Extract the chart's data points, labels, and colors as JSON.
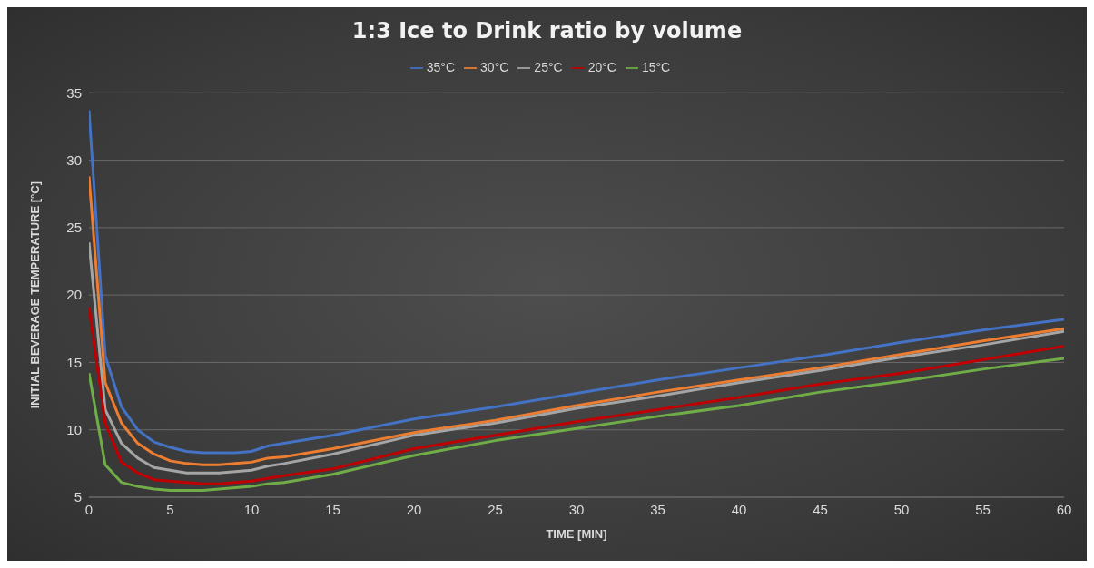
{
  "chart_data": {
    "type": "line",
    "title": "1:3 Ice to Drink ratio by volume",
    "xlabel": "TIME [MIN]",
    "ylabel": "INITIAL BEVERAGE TEMPERATURE [°C]",
    "x": [
      0,
      1,
      2,
      3,
      4,
      5,
      6,
      7,
      8,
      9,
      10,
      11,
      12,
      15,
      20,
      25,
      30,
      35,
      40,
      45,
      50,
      55,
      60
    ],
    "series": [
      {
        "name": "35°C",
        "color": "#4472c4",
        "values": [
          33.7,
          15.5,
          11.7,
          10,
          9.1,
          8.7,
          8.4,
          8.3,
          8.3,
          8.3,
          8.4,
          8.8,
          9.0,
          9.6,
          10.8,
          11.7,
          12.7,
          13.7,
          14.6,
          15.5,
          16.5,
          17.4,
          18.2
        ]
      },
      {
        "name": "30°C",
        "color": "#ed7d31",
        "values": [
          28.8,
          13.5,
          10.5,
          9,
          8.2,
          7.7,
          7.5,
          7.4,
          7.4,
          7.5,
          7.6,
          7.9,
          8.0,
          8.6,
          9.8,
          10.7,
          11.8,
          12.8,
          13.7,
          14.6,
          15.6,
          16.6,
          17.5
        ]
      },
      {
        "name": "25°C",
        "color": "#a5a5a5",
        "values": [
          23.9,
          11.5,
          9,
          7.9,
          7.2,
          7.0,
          6.8,
          6.8,
          6.8,
          6.9,
          7.0,
          7.3,
          7.5,
          8.2,
          9.6,
          10.5,
          11.6,
          12.5,
          13.5,
          14.4,
          15.4,
          16.3,
          17.3
        ]
      },
      {
        "name": "20°C",
        "color": "#c00000",
        "values": [
          19.1,
          10.5,
          7.6,
          6.8,
          6.3,
          6.2,
          6.1,
          6.0,
          6.0,
          6.1,
          6.2,
          6.4,
          6.6,
          7.1,
          8.6,
          9.6,
          10.6,
          11.5,
          12.4,
          13.4,
          14.2,
          15.2,
          16.2
        ]
      },
      {
        "name": "15°C",
        "color": "#70ad47",
        "values": [
          14.2,
          7.4,
          6.1,
          5.8,
          5.6,
          5.5,
          5.5,
          5.5,
          5.6,
          5.7,
          5.8,
          6.0,
          6.1,
          6.7,
          8.1,
          9.2,
          10.1,
          11.0,
          11.8,
          12.8,
          13.6,
          14.5,
          15.3
        ]
      }
    ],
    "xlim": [
      0,
      60
    ],
    "xticks": [
      0,
      5,
      10,
      15,
      20,
      25,
      30,
      35,
      40,
      45,
      50,
      55,
      60
    ],
    "ylim": [
      5,
      35
    ],
    "yticks": [
      5,
      10,
      15,
      20,
      25,
      30,
      35
    ],
    "grid": "y",
    "legend": "top",
    "marker": "none",
    "line_style": "solid"
  }
}
